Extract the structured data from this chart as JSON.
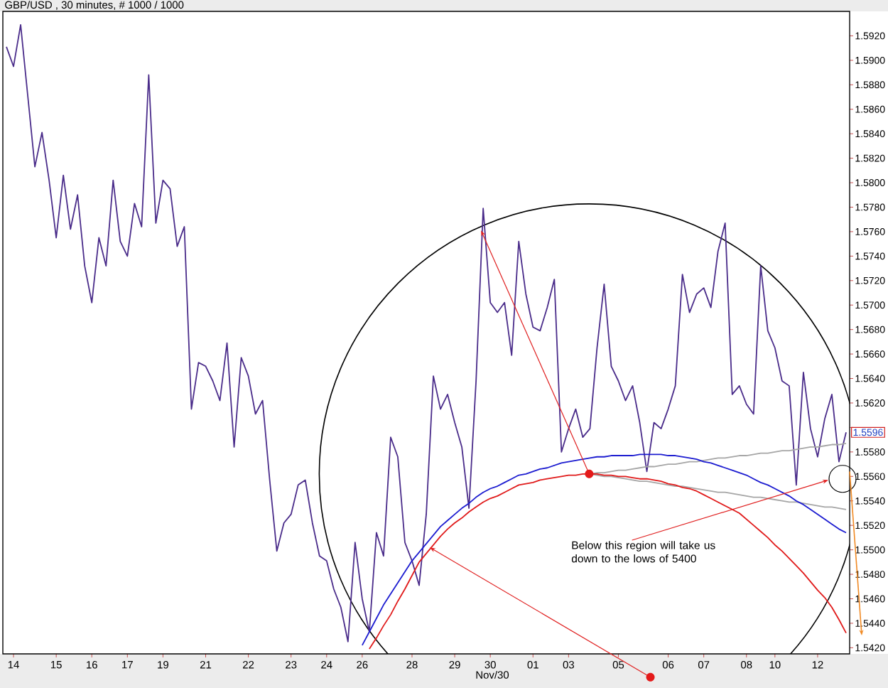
{
  "chart_data": {
    "type": "line",
    "title": "GBP/USD , 30 minutes, # 1000 / 1000",
    "xlabel": "Nov/30",
    "marker": "none",
    "categories": [
      null,
      "14",
      null,
      null,
      null,
      null,
      null,
      "15",
      null,
      null,
      null,
      null,
      "16",
      null,
      null,
      null,
      null,
      "17",
      null,
      null,
      null,
      null,
      "19",
      null,
      null,
      null,
      null,
      null,
      "21",
      null,
      null,
      null,
      null,
      null,
      "22",
      null,
      null,
      null,
      null,
      null,
      "23",
      null,
      null,
      null,
      null,
      "24",
      null,
      null,
      null,
      null,
      "26",
      null,
      null,
      null,
      null,
      null,
      null,
      "28",
      null,
      null,
      null,
      null,
      null,
      "29",
      null,
      null,
      null,
      null,
      "30",
      null,
      null,
      null,
      null,
      null,
      "01",
      null,
      null,
      null,
      null,
      "03",
      null,
      null,
      null,
      null,
      null,
      null,
      "05",
      null,
      null,
      null,
      null,
      null,
      null,
      "06",
      null,
      null,
      null,
      null,
      "07",
      null,
      null,
      null,
      null,
      null,
      "08",
      null,
      null,
      null,
      "10",
      null,
      null,
      null,
      null,
      null,
      "12",
      null,
      null,
      null,
      null
    ],
    "ylim": [
      1.5415,
      1.594
    ],
    "yticks": [
      {
        "value": 1.542,
        "label": "1.5420"
      },
      {
        "value": 1.544,
        "label": "1.5440"
      },
      {
        "value": 1.546,
        "label": "1.5460"
      },
      {
        "value": 1.548,
        "label": "1.5480"
      },
      {
        "value": 1.55,
        "label": "1.5500"
      },
      {
        "value": 1.552,
        "label": "1.5520"
      },
      {
        "value": 1.554,
        "label": "1.5540"
      },
      {
        "value": 1.556,
        "label": "1.5560"
      },
      {
        "value": 1.558,
        "label": "1.5580"
      },
      {
        "value": 1.56,
        "label": null
      },
      {
        "value": 1.562,
        "label": "1.5620"
      },
      {
        "value": 1.564,
        "label": "1.5640"
      },
      {
        "value": 1.566,
        "label": "1.5660"
      },
      {
        "value": 1.568,
        "label": "1.5680"
      },
      {
        "value": 1.57,
        "label": "1.5700"
      },
      {
        "value": 1.572,
        "label": "1.5720"
      },
      {
        "value": 1.574,
        "label": "1.5740"
      },
      {
        "value": 1.576,
        "label": "1.5760"
      },
      {
        "value": 1.578,
        "label": "1.5780"
      },
      {
        "value": 1.58,
        "label": "1.5800"
      },
      {
        "value": 1.582,
        "label": "1.5820"
      },
      {
        "value": 1.584,
        "label": "1.5840"
      },
      {
        "value": 1.586,
        "label": "1.5860"
      },
      {
        "value": 1.588,
        "label": "1.5880"
      },
      {
        "value": 1.59,
        "label": "1.5900"
      },
      {
        "value": 1.592,
        "label": "1.5920"
      }
    ],
    "series": [
      {
        "color": "#4a2c8a",
        "values": [
          1.5911,
          1.5895,
          1.5929,
          1.5871,
          1.5813,
          1.5841,
          1.5802,
          1.5755,
          1.5806,
          1.5762,
          1.579,
          1.5732,
          1.5702,
          1.5755,
          1.5732,
          1.5802,
          1.5752,
          1.574,
          1.5783,
          1.5764,
          1.5888,
          1.5767,
          1.5802,
          1.5795,
          1.5748,
          1.5764,
          1.5615,
          1.5653,
          1.565,
          1.5638,
          1.5622,
          1.5669,
          1.5584,
          1.5657,
          1.5642,
          1.5611,
          1.5622,
          1.5557,
          1.5499,
          1.5522,
          1.5529,
          1.5553,
          1.5557,
          1.5522,
          1.5495,
          1.5491,
          1.5468,
          1.5453,
          1.5425,
          1.5506,
          1.546,
          1.5433,
          1.5514,
          1.5495,
          1.5592,
          1.5576,
          1.5506,
          1.5491,
          1.5471,
          1.5529,
          1.5642,
          1.5615,
          1.5627,
          1.5604,
          1.5584,
          1.5534,
          1.5638,
          1.5779,
          1.5702,
          1.5694,
          1.5702,
          1.5659,
          1.5752,
          1.5709,
          1.5682,
          1.5679,
          1.5698,
          1.5721,
          1.558,
          1.5599,
          1.5615,
          1.5592,
          1.5599,
          1.5665,
          1.5717,
          1.565,
          1.5638,
          1.5622,
          1.5634,
          1.5604,
          1.5564,
          1.5604,
          1.5599,
          1.5615,
          1.5634,
          1.5725,
          1.5694,
          1.5709,
          1.5714,
          1.5698,
          1.5744,
          1.5767,
          1.5627,
          1.5634,
          1.5619,
          1.5611,
          1.5732,
          1.5679,
          1.5665,
          1.5638,
          1.5634,
          1.5553,
          1.5645,
          1.5599,
          1.5576,
          1.5607,
          1.5627,
          1.5572,
          1.5596
        ]
      },
      {
        "color": "#a6a6a6",
        "values": [
          null,
          null,
          null,
          null,
          null,
          null,
          null,
          null,
          null,
          null,
          null,
          null,
          null,
          null,
          null,
          null,
          null,
          null,
          null,
          null,
          null,
          null,
          null,
          null,
          null,
          null,
          null,
          null,
          null,
          null,
          null,
          null,
          null,
          null,
          null,
          null,
          null,
          null,
          null,
          null,
          null,
          null,
          null,
          null,
          null,
          null,
          null,
          null,
          null,
          null,
          null,
          null,
          null,
          null,
          null,
          null,
          null,
          null,
          null,
          null,
          null,
          null,
          null,
          null,
          null,
          null,
          null,
          null,
          null,
          null,
          null,
          null,
          null,
          null,
          null,
          null,
          null,
          null,
          null,
          null,
          null,
          null,
          1.5562,
          1.5563,
          1.5563,
          1.5564,
          1.5565,
          1.5565,
          1.5566,
          1.5567,
          1.5568,
          1.5568,
          1.5569,
          1.557,
          1.557,
          1.5571,
          1.5572,
          1.5572,
          1.5573,
          1.5574,
          1.5575,
          1.5575,
          1.5576,
          1.5577,
          1.5577,
          1.5578,
          1.5579,
          1.5579,
          1.558,
          1.5581,
          1.5581,
          1.5582,
          1.5583,
          1.5584,
          1.5584,
          1.5585,
          1.5586,
          1.5586,
          1.5587
        ]
      },
      {
        "color": "#a6a6a6",
        "values": [
          null,
          null,
          null,
          null,
          null,
          null,
          null,
          null,
          null,
          null,
          null,
          null,
          null,
          null,
          null,
          null,
          null,
          null,
          null,
          null,
          null,
          null,
          null,
          null,
          null,
          null,
          null,
          null,
          null,
          null,
          null,
          null,
          null,
          null,
          null,
          null,
          null,
          null,
          null,
          null,
          null,
          null,
          null,
          null,
          null,
          null,
          null,
          null,
          null,
          null,
          null,
          null,
          null,
          null,
          null,
          null,
          null,
          null,
          null,
          null,
          null,
          null,
          null,
          null,
          null,
          null,
          null,
          null,
          null,
          null,
          null,
          null,
          null,
          null,
          null,
          null,
          null,
          null,
          null,
          null,
          null,
          null,
          1.5562,
          1.5561,
          1.556,
          1.556,
          1.5559,
          1.5558,
          1.5557,
          1.5556,
          1.5556,
          1.5555,
          1.5554,
          1.5553,
          1.5552,
          1.5552,
          1.5551,
          1.555,
          1.5549,
          1.5548,
          1.5547,
          1.5547,
          1.5546,
          1.5545,
          1.5544,
          1.5543,
          1.5543,
          1.5542,
          1.5541,
          1.554,
          1.5539,
          1.5539,
          1.5538,
          1.5537,
          1.5536,
          1.5535,
          1.5535,
          1.5534,
          1.5533
        ]
      },
      {
        "color": "#1c1cd0",
        "values": [
          null,
          null,
          null,
          null,
          null,
          null,
          null,
          null,
          null,
          null,
          null,
          null,
          null,
          null,
          null,
          null,
          null,
          null,
          null,
          null,
          null,
          null,
          null,
          null,
          null,
          null,
          null,
          null,
          null,
          null,
          null,
          null,
          null,
          null,
          null,
          null,
          null,
          null,
          null,
          null,
          null,
          null,
          null,
          null,
          null,
          null,
          null,
          null,
          null,
          null,
          1.5422,
          1.5433,
          1.5444,
          1.5455,
          1.5464,
          1.5473,
          1.5482,
          1.5491,
          1.5498,
          1.5505,
          1.5512,
          1.5519,
          1.5524,
          1.5529,
          1.5534,
          1.5538,
          1.5543,
          1.5547,
          1.555,
          1.5552,
          1.5555,
          1.5558,
          1.5561,
          1.5562,
          1.5564,
          1.5566,
          1.5567,
          1.5569,
          1.5571,
          1.5572,
          1.5573,
          1.5574,
          1.5575,
          1.5576,
          1.5576,
          1.5577,
          1.5577,
          1.5577,
          1.5577,
          1.5578,
          1.5578,
          1.5578,
          1.5578,
          1.5577,
          1.5577,
          1.5576,
          1.5575,
          1.5574,
          1.5572,
          1.5571,
          1.5569,
          1.5567,
          1.5565,
          1.5563,
          1.5561,
          1.5558,
          1.5555,
          1.5553,
          1.555,
          1.5547,
          1.5544,
          1.554,
          1.5537,
          1.5533,
          1.5529,
          1.5525,
          1.5521,
          1.5517,
          1.5514
        ]
      },
      {
        "color": "#e01a1a",
        "values": [
          null,
          null,
          null,
          null,
          null,
          null,
          null,
          null,
          null,
          null,
          null,
          null,
          null,
          null,
          null,
          null,
          null,
          null,
          null,
          null,
          null,
          null,
          null,
          null,
          null,
          null,
          null,
          null,
          null,
          null,
          null,
          null,
          null,
          null,
          null,
          null,
          null,
          null,
          null,
          null,
          null,
          null,
          null,
          null,
          null,
          null,
          null,
          null,
          null,
          null,
          null,
          1.5419,
          1.5428,
          1.5438,
          1.5447,
          1.5458,
          1.5468,
          1.5479,
          1.549,
          1.5497,
          1.5504,
          1.5511,
          1.5517,
          1.5522,
          1.5526,
          1.5531,
          1.5535,
          1.5539,
          1.5542,
          1.5544,
          1.5547,
          1.555,
          1.5553,
          1.5554,
          1.5555,
          1.5557,
          1.5558,
          1.5559,
          1.556,
          1.5561,
          1.5561,
          1.5562,
          1.5562,
          1.5562,
          1.5561,
          1.5561,
          1.556,
          1.556,
          1.5559,
          1.5558,
          1.5558,
          1.5557,
          1.5556,
          1.5554,
          1.5553,
          1.5551,
          1.555,
          1.5548,
          1.5545,
          1.5542,
          1.5539,
          1.5536,
          1.5533,
          1.553,
          1.5525,
          1.552,
          1.5515,
          1.551,
          1.5504,
          1.5499,
          1.5493,
          1.5487,
          1.5481,
          1.5474,
          1.5467,
          1.5461,
          1.5453,
          1.5443,
          1.5432
        ]
      }
    ],
    "annotations": [
      "1.5596",
      "Below this region will take us down to the lows of 5400"
    ]
  }
}
